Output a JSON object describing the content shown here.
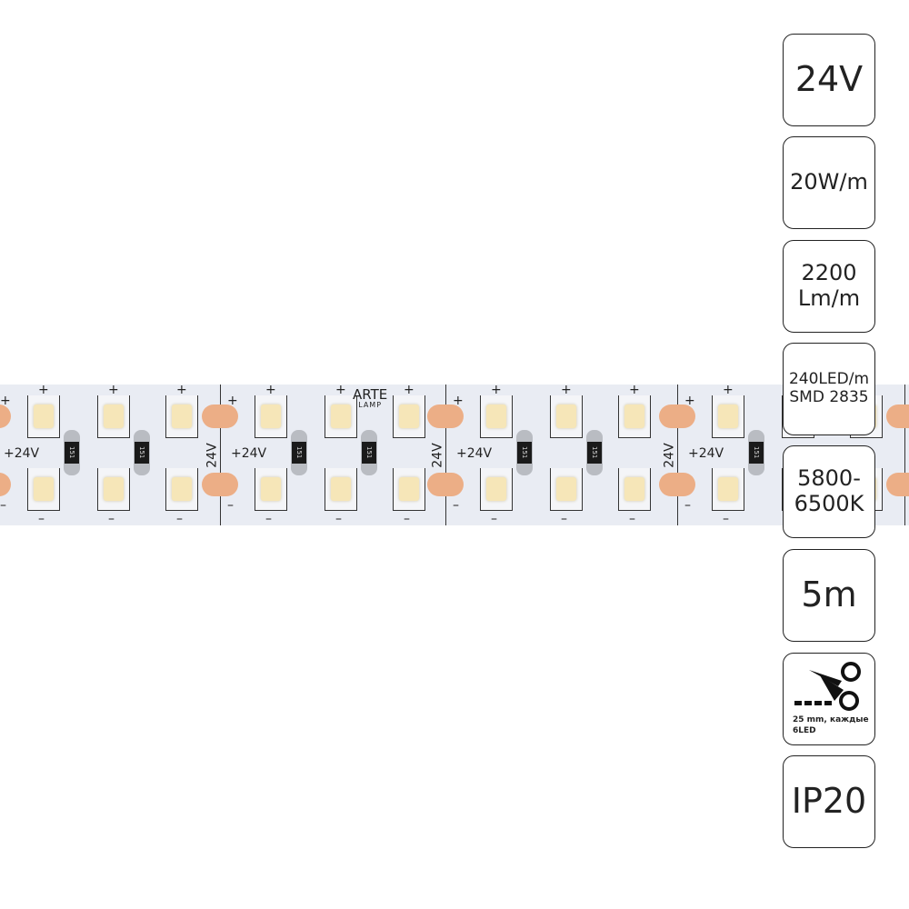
{
  "strip": {
    "brand_top": "ARTE",
    "brand_bottom": "LAMP",
    "polarity_label": "+24V",
    "voltage_label": "24V",
    "plus": "+",
    "minus": "–",
    "resistor_code": "151",
    "colors": {
      "pcb": "#e9ecf3",
      "pad": "#ecae86",
      "led": "#f6e6b8"
    }
  },
  "specs": [
    {
      "lines": [
        "24V"
      ],
      "icon": null
    },
    {
      "lines": [
        "20W/m"
      ],
      "icon": null
    },
    {
      "lines": [
        "2200",
        "Lm/m"
      ],
      "icon": null
    },
    {
      "lines": [
        "240LED/m",
        "SMD 2835"
      ],
      "icon": null
    },
    {
      "lines": [
        "5800-",
        "6500K"
      ],
      "icon": null
    },
    {
      "lines": [
        "5m"
      ],
      "icon": null
    },
    {
      "lines": [
        "25 mm, каждые",
        "6LED"
      ],
      "icon": "scissors-cut-icon"
    },
    {
      "lines": [
        "IP20"
      ],
      "icon": null
    }
  ]
}
